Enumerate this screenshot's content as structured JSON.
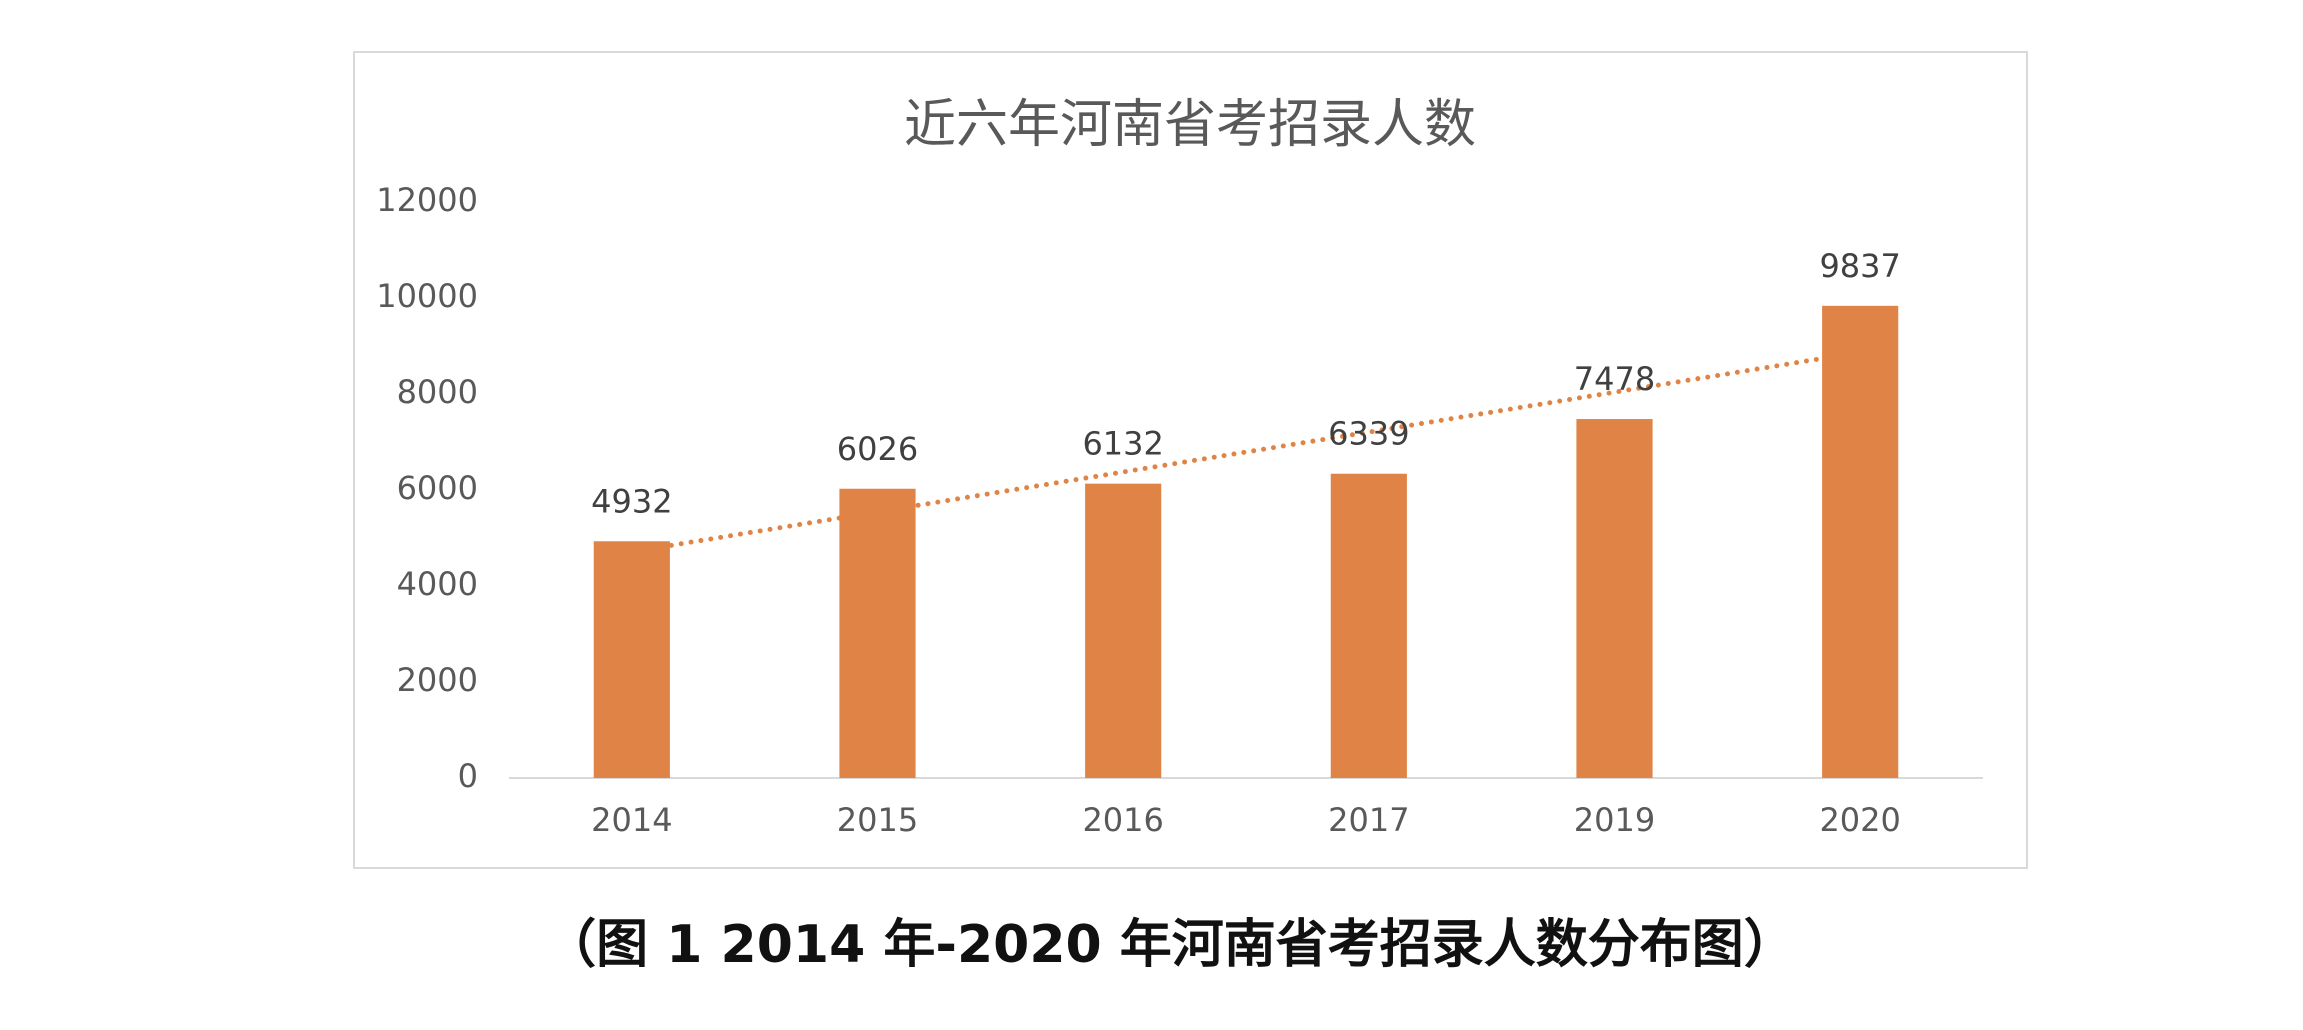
{
  "chart_data": {
    "type": "bar",
    "title": "近六年河南省考招录人数",
    "categories": [
      "2014",
      "2015",
      "2016",
      "2017",
      "2019",
      "2020"
    ],
    "values": [
      4932,
      6026,
      6132,
      6339,
      7478,
      9837
    ],
    "color": "#df8446",
    "ylim": [
      0,
      12000
    ],
    "yticks": [
      0,
      2000,
      4000,
      6000,
      8000,
      10000,
      12000
    ],
    "grid": false,
    "trendline": "linear"
  },
  "caption": "（图 1 2014 年-2020 年河南省考招录人数分布图）"
}
